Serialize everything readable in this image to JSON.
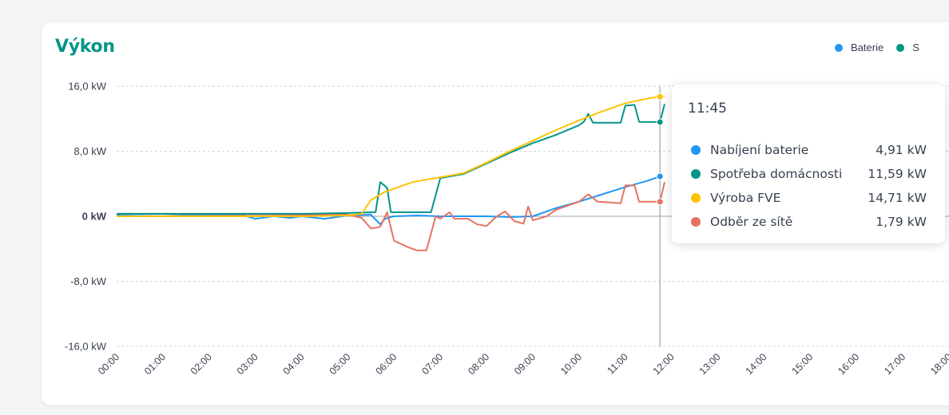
{
  "card": {
    "title": "Výkon",
    "title_color": "#009688"
  },
  "legend": [
    {
      "label": "Baterie",
      "color": "#2196f3"
    },
    {
      "label": "S",
      "color": "#009688"
    }
  ],
  "tooltip": {
    "time": "11:45",
    "rows": [
      {
        "label": "Nabíjení baterie",
        "value": "4,91 kW",
        "color": "#2196f3"
      },
      {
        "label": "Spotřeba domácnosti",
        "value": "11,59 kW",
        "color": "#009688"
      },
      {
        "label": "Výroba FVE",
        "value": "14,71 kW",
        "color": "#ffc107"
      },
      {
        "label": "Odběr ze sítě",
        "value": "1,79 kW",
        "color": "#e57361"
      }
    ]
  },
  "chart_data": {
    "type": "line",
    "title": "Výkon",
    "xlabel": "",
    "ylabel": "",
    "xlim": [
      0,
      18
    ],
    "ylim": [
      -16,
      16
    ],
    "yticks": [
      {
        "v": 16,
        "label": "16,0 kW"
      },
      {
        "v": 8,
        "label": "8,0 kW"
      },
      {
        "v": 0,
        "label": "0 kW"
      },
      {
        "v": -8,
        "label": "-8,0 kW"
      },
      {
        "v": -16,
        "label": "-16,0 kW"
      }
    ],
    "xticks": [
      "00:00",
      "01:00",
      "02:00",
      "03:00",
      "04:00",
      "05:00",
      "06:00",
      "07:00",
      "08:00",
      "09:00",
      "10:00",
      "11:00",
      "12:00",
      "13:00",
      "14:00",
      "15:00",
      "16:00",
      "17:00",
      "18:00"
    ],
    "grid": true,
    "legend_position": "top-right",
    "crosshair_x": 11.75,
    "series": [
      {
        "name": "Baterie",
        "color": "#2196f3",
        "points": [
          [
            0,
            0.1
          ],
          [
            1,
            0
          ],
          [
            2,
            0.2
          ],
          [
            2.75,
            0.1
          ],
          [
            3,
            -0.3
          ],
          [
            3.4,
            0
          ],
          [
            3.75,
            -0.2
          ],
          [
            4,
            0
          ],
          [
            4.5,
            -0.3
          ],
          [
            5,
            0.1
          ],
          [
            5.5,
            0.2
          ],
          [
            5.7,
            -1
          ],
          [
            5.8,
            -0.3
          ],
          [
            6,
            0
          ],
          [
            6.5,
            0.1
          ],
          [
            7,
            0
          ],
          [
            8,
            0
          ],
          [
            8.5,
            -0.1
          ],
          [
            9,
            0
          ],
          [
            9.5,
            1
          ],
          [
            10,
            1.8
          ],
          [
            10.5,
            2.7
          ],
          [
            11,
            3.6
          ],
          [
            11.5,
            4.4
          ],
          [
            11.75,
            4.91
          ]
        ]
      },
      {
        "name": "Spotřeba domácnosti",
        "color": "#009688",
        "points": [
          [
            0,
            0.3
          ],
          [
            2,
            0.3
          ],
          [
            4,
            0.3
          ],
          [
            5,
            0.4
          ],
          [
            5.6,
            0.5
          ],
          [
            5.7,
            4.2
          ],
          [
            5.85,
            3.5
          ],
          [
            5.93,
            0.5
          ],
          [
            6.8,
            0.5
          ],
          [
            7,
            4.7
          ],
          [
            7.5,
            5.2
          ],
          [
            8,
            6.5
          ],
          [
            8.5,
            7.8
          ],
          [
            9,
            9.0
          ],
          [
            9.5,
            10
          ],
          [
            10,
            11.2
          ],
          [
            10.1,
            11.6
          ],
          [
            10.2,
            12.6
          ],
          [
            10.3,
            11.5
          ],
          [
            10.9,
            11.5
          ],
          [
            11,
            13.6
          ],
          [
            11.2,
            13.7
          ],
          [
            11.3,
            11.6
          ],
          [
            11.75,
            11.59
          ],
          [
            11.85,
            13.8
          ]
        ]
      },
      {
        "name": "Výroba FVE",
        "color": "#ffc107",
        "points": [
          [
            0,
            0
          ],
          [
            4,
            0
          ],
          [
            5,
            0.1
          ],
          [
            5.3,
            0.3
          ],
          [
            5.5,
            2
          ],
          [
            5.8,
            3
          ],
          [
            6,
            3.4
          ],
          [
            6.4,
            4.2
          ],
          [
            6.8,
            4.6
          ],
          [
            7,
            4.8
          ],
          [
            7.5,
            5.3
          ],
          [
            8,
            6.6
          ],
          [
            8.5,
            8.0
          ],
          [
            9,
            9.3
          ],
          [
            9.5,
            10.6
          ],
          [
            10,
            11.8
          ],
          [
            10.5,
            12.9
          ],
          [
            11,
            13.9
          ],
          [
            11.5,
            14.5
          ],
          [
            11.75,
            14.71
          ],
          [
            11.85,
            14.8
          ]
        ]
      },
      {
        "name": "Odběr ze sítě",
        "color": "#e57361",
        "points": [
          [
            0,
            0.3
          ],
          [
            4,
            0.2
          ],
          [
            5,
            0.2
          ],
          [
            5.3,
            -0.2
          ],
          [
            5.5,
            -1.5
          ],
          [
            5.7,
            -1.3
          ],
          [
            5.85,
            0.5
          ],
          [
            6,
            -3
          ],
          [
            6.3,
            -3.8
          ],
          [
            6.5,
            -4.2
          ],
          [
            6.7,
            -4.2
          ],
          [
            6.9,
            0
          ],
          [
            7,
            -0.3
          ],
          [
            7.2,
            0.5
          ],
          [
            7.3,
            -0.3
          ],
          [
            7.6,
            -0.3
          ],
          [
            7.8,
            -1
          ],
          [
            8,
            -1.2
          ],
          [
            8.2,
            -0.1
          ],
          [
            8.4,
            0.6
          ],
          [
            8.6,
            -0.6
          ],
          [
            8.8,
            -0.9
          ],
          [
            8.9,
            1.2
          ],
          [
            9,
            -0.5
          ],
          [
            9.3,
            0
          ],
          [
            9.5,
            0.8
          ],
          [
            9.8,
            1.4
          ],
          [
            10,
            1.8
          ],
          [
            10.2,
            2.7
          ],
          [
            10.4,
            1.8
          ],
          [
            10.7,
            1.7
          ],
          [
            10.9,
            1.6
          ],
          [
            11,
            3.8
          ],
          [
            11.2,
            3.8
          ],
          [
            11.3,
            1.8
          ],
          [
            11.75,
            1.79
          ],
          [
            11.85,
            4.2
          ]
        ]
      }
    ]
  }
}
